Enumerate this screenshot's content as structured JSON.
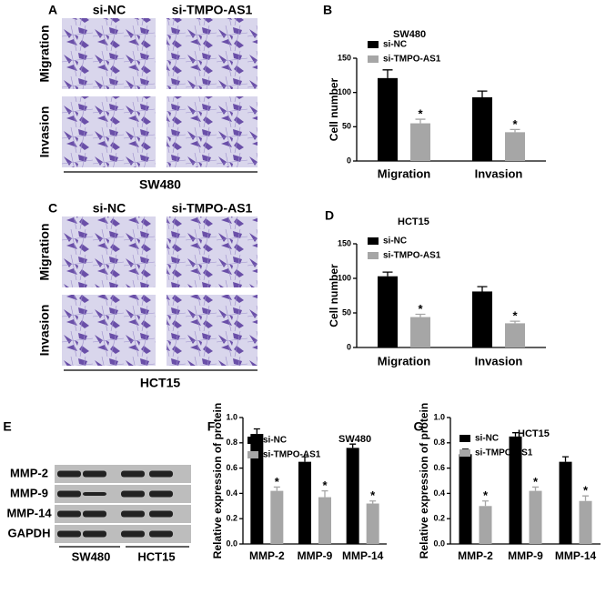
{
  "panels": {
    "A": {
      "letter": "A",
      "columns": [
        "si-NC",
        "si-TMPO-AS1"
      ],
      "rows": [
        "Migration",
        "Invasion"
      ],
      "cell_line": "SW480"
    },
    "C": {
      "letter": "C",
      "columns": [
        "si-NC",
        "si-TMPO-AS1"
      ],
      "rows": [
        "Migration",
        "Invasion"
      ],
      "cell_line": "HCT15"
    },
    "E": {
      "letter": "E",
      "rows": [
        "MMP-2",
        "MMP-9",
        "MMP-14",
        "GAPDH"
      ],
      "groups": [
        "SW480",
        "HCT15"
      ]
    }
  },
  "chart_data": [
    {
      "type": "bar",
      "letter": "B",
      "title": "SW480",
      "y_label": "Cell number",
      "categories": [
        "Migration",
        "Invasion"
      ],
      "ylim": [
        0,
        150
      ],
      "yticks": [
        0,
        50,
        100,
        150
      ],
      "series": [
        {
          "name": "si-NC",
          "color": "#000000",
          "values": [
            121,
            93
          ],
          "errors": [
            12,
            9
          ]
        },
        {
          "name": "si-TMPO-AS1",
          "color": "#a6a6a6",
          "values": [
            55,
            42
          ],
          "errors": [
            6,
            4
          ],
          "annotations": [
            "*",
            "*"
          ]
        }
      ]
    },
    {
      "type": "bar",
      "letter": "D",
      "title": "HCT15",
      "y_label": "Cell number",
      "categories": [
        "Migration",
        "Invasion"
      ],
      "ylim": [
        0,
        150
      ],
      "yticks": [
        0,
        50,
        100,
        150
      ],
      "series": [
        {
          "name": "si-NC",
          "color": "#000000",
          "values": [
            103,
            81
          ],
          "errors": [
            6,
            7
          ]
        },
        {
          "name": "si-TMPO-AS1",
          "color": "#a6a6a6",
          "values": [
            44,
            35
          ],
          "errors": [
            4,
            3
          ],
          "annotations": [
            "*",
            "*"
          ]
        }
      ]
    },
    {
      "type": "bar",
      "letter": "F",
      "title": "SW480",
      "y_label": "Relative expression of protein",
      "categories": [
        "MMP-2",
        "MMP-9",
        "MMP-14"
      ],
      "ylim": [
        0,
        1
      ],
      "yticks": [
        {
          "value": 0,
          "label": "0.0"
        },
        0.2,
        0.4,
        0.6,
        0.8,
        {
          "value": 1,
          "label": "1.0"
        }
      ],
      "series": [
        {
          "name": "si-NC",
          "color": "#000000",
          "values": [
            0.87,
            0.65,
            0.76
          ],
          "errors": [
            0.04,
            0.04,
            0.03
          ]
        },
        {
          "name": "si-TMPO-AS1",
          "color": "#a6a6a6",
          "values": [
            0.42,
            0.37,
            0.32
          ],
          "errors": [
            0.03,
            0.05,
            0.02
          ],
          "annotations": [
            "*",
            "*",
            "*"
          ]
        }
      ]
    },
    {
      "type": "bar",
      "letter": "G",
      "title": "HCT15",
      "y_label": "Relative expression of protein",
      "categories": [
        "MMP-2",
        "MMP-9",
        "MMP-14"
      ],
      "ylim": [
        0,
        1
      ],
      "yticks": [
        {
          "value": 0,
          "label": "0.0"
        },
        0.2,
        0.4,
        0.6,
        0.8,
        {
          "value": 1,
          "label": "1.0"
        }
      ],
      "series": [
        {
          "name": "si-NC",
          "color": "#000000",
          "values": [
            0.71,
            0.85,
            0.65
          ],
          "errors": [
            0.04,
            0.03,
            0.04
          ]
        },
        {
          "name": "si-TMPO-AS1",
          "color": "#a6a6a6",
          "values": [
            0.3,
            0.42,
            0.34
          ],
          "errors": [
            0.04,
            0.03,
            0.04
          ],
          "annotations": [
            "*",
            "*",
            "*"
          ]
        }
      ]
    }
  ]
}
